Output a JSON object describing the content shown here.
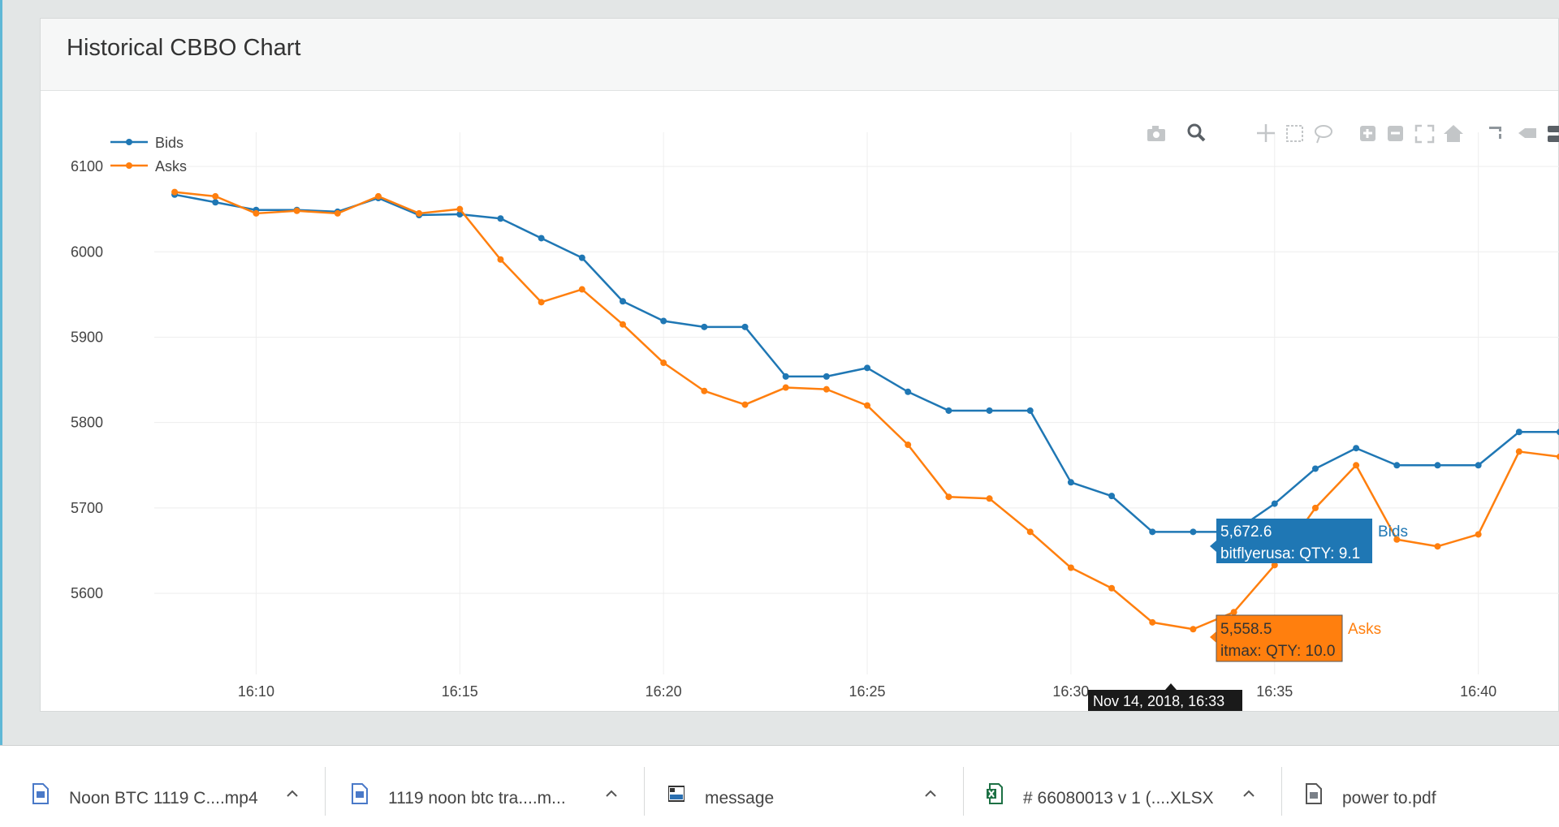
{
  "panel": {
    "title": "Historical CBBO Chart"
  },
  "toolbar": {
    "icons": [
      "camera-icon",
      "zoom-icon",
      "pan-icon",
      "box-select-icon",
      "lasso-icon",
      "zoom-in-icon",
      "zoom-out-icon",
      "autoscale-icon",
      "reset-axes-icon",
      "spike-lines-icon",
      "hover-closest-icon",
      "hover-compare-icon"
    ]
  },
  "hover": {
    "bids": {
      "value": "5,672.6",
      "detail": "bitflyerusa: QTY: 9.1",
      "series": "Bids"
    },
    "asks": {
      "value": "5,558.5",
      "detail": "itmax: QTY: 10.0",
      "series": "Asks"
    },
    "x_label": "Nov 14, 2018, 16:33"
  },
  "chart_data": {
    "type": "line",
    "title": "",
    "xlabel": "",
    "ylabel": "",
    "x_ticks": [
      "16:10",
      "16:15",
      "16:20",
      "16:25",
      "16:30",
      "16:35",
      "16:40"
    ],
    "y_ticks": [
      5600,
      5700,
      5800,
      5900,
      6000,
      6100
    ],
    "xlim": [
      "16:07:30",
      "16:42"
    ],
    "ylim": [
      5505,
      6140
    ],
    "grid": true,
    "legend": "top-left",
    "x": [
      "16:08",
      "16:09",
      "16:10",
      "16:11",
      "16:12",
      "16:13",
      "16:14",
      "16:15",
      "16:16",
      "16:17",
      "16:18",
      "16:19",
      "16:20",
      "16:21",
      "16:22",
      "16:23",
      "16:24",
      "16:25",
      "16:26",
      "16:27",
      "16:28",
      "16:29",
      "16:30",
      "16:31",
      "16:32",
      "16:33",
      "16:34",
      "16:35",
      "16:36",
      "16:37",
      "16:38",
      "16:39",
      "16:40",
      "16:41",
      "16:42"
    ],
    "series": [
      {
        "name": "Bids",
        "color": "#1f77b4",
        "values": [
          6067,
          6058,
          6049,
          6049,
          6047,
          6063,
          6043,
          6044,
          6039,
          6016,
          5993,
          5942,
          5919,
          5912,
          5912,
          5854,
          5854,
          5864,
          5836,
          5814,
          5814,
          5814,
          5730,
          5714,
          5672,
          5672,
          5672,
          5705,
          5746,
          5770,
          5750,
          5750,
          5750,
          5789,
          5789
        ]
      },
      {
        "name": "Asks",
        "color": "#ff7f0e",
        "values": [
          6070,
          6065,
          6045,
          6048,
          6045,
          6065,
          6045,
          6050,
          5991,
          5941,
          5956,
          5915,
          5870,
          5837,
          5821,
          5841,
          5839,
          5820,
          5774,
          5713,
          5711,
          5672,
          5630,
          5606,
          5566,
          5558,
          5578,
          5633,
          5700,
          5750,
          5663,
          5655,
          5669,
          5766,
          5760
        ]
      }
    ]
  },
  "downloads": [
    {
      "name": "Noon BTC 1119 C....mp4",
      "icon": "file-icon"
    },
    {
      "name": "1119 noon btc tra....m...",
      "icon": "file-icon"
    },
    {
      "name": "message",
      "icon": "image-file-icon"
    },
    {
      "name": "# 66080013 v 1 (....XLSX",
      "icon": "excel-file-icon"
    },
    {
      "name": "power to.pdf",
      "icon": "file-icon"
    }
  ]
}
